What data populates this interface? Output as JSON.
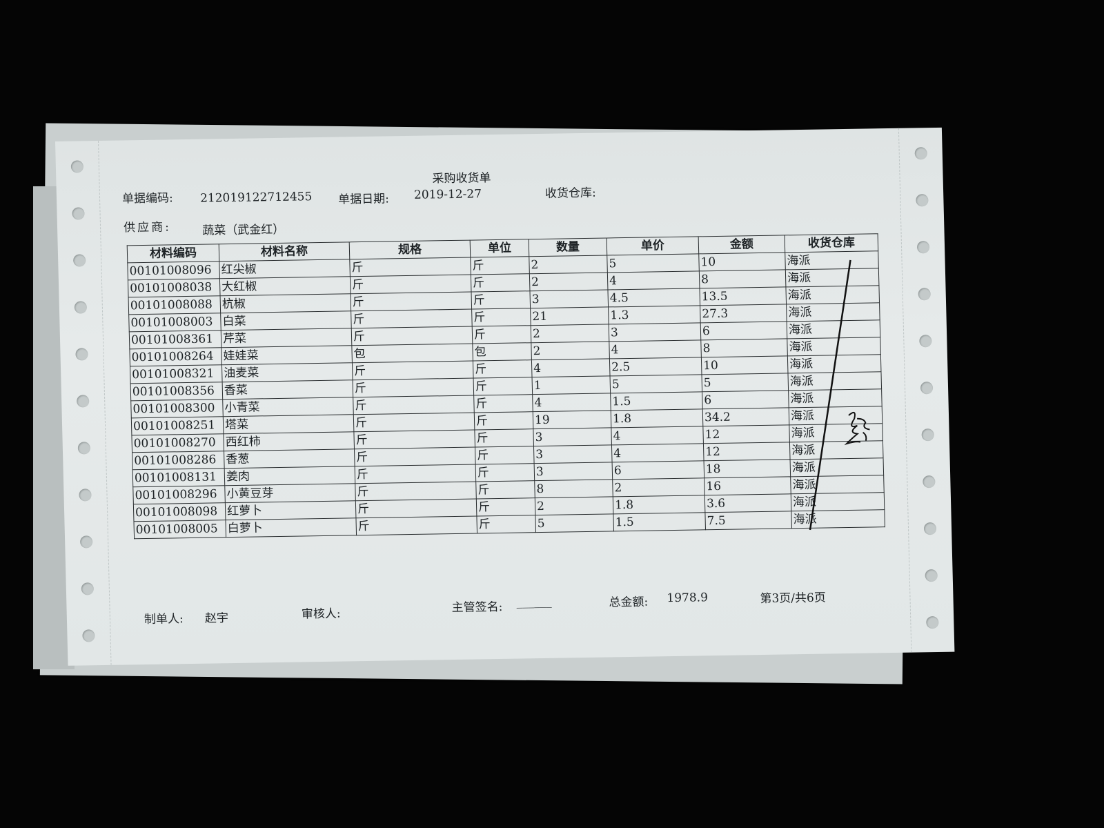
{
  "document": {
    "title": "采购收货单",
    "doc_no_label": "单据编码:",
    "doc_no": "212019122712455",
    "date_label": "单据日期:",
    "date": "2019-12-27",
    "warehouse_label": "收货仓库:",
    "supplier_label": "供应商:",
    "supplier": "蔬菜（武金红）"
  },
  "table": {
    "headers": [
      "材料编码",
      "材料名称",
      "规格",
      "单位",
      "数量",
      "单价",
      "金额",
      "收货仓库"
    ],
    "rows": [
      [
        "00101008096",
        "红尖椒",
        "斤",
        "斤",
        "2",
        "5",
        "10",
        "海派"
      ],
      [
        "00101008038",
        "大红椒",
        "斤",
        "斤",
        "2",
        "4",
        "8",
        "海派"
      ],
      [
        "00101008088",
        "杭椒",
        "斤",
        "斤",
        "3",
        "4.5",
        "13.5",
        "海派"
      ],
      [
        "00101008003",
        "白菜",
        "斤",
        "斤",
        "21",
        "1.3",
        "27.3",
        "海派"
      ],
      [
        "00101008361",
        "芹菜",
        "斤",
        "斤",
        "2",
        "3",
        "6",
        "海派"
      ],
      [
        "00101008264",
        "娃娃菜",
        "包",
        "包",
        "2",
        "4",
        "8",
        "海派"
      ],
      [
        "00101008321",
        "油麦菜",
        "斤",
        "斤",
        "4",
        "2.5",
        "10",
        "海派"
      ],
      [
        "00101008356",
        "香菜",
        "斤",
        "斤",
        "1",
        "5",
        "5",
        "海派"
      ],
      [
        "00101008300",
        "小青菜",
        "斤",
        "斤",
        "4",
        "1.5",
        "6",
        "海派"
      ],
      [
        "00101008251",
        "塔菜",
        "斤",
        "斤",
        "19",
        "1.8",
        "34.2",
        "海派"
      ],
      [
        "00101008270",
        "西红柿",
        "斤",
        "斤",
        "3",
        "4",
        "12",
        "海派"
      ],
      [
        "00101008286",
        "香葱",
        "斤",
        "斤",
        "3",
        "4",
        "12",
        "海派"
      ],
      [
        "00101008131",
        "姜肉",
        "斤",
        "斤",
        "3",
        "6",
        "18",
        "海派"
      ],
      [
        "00101008296",
        "小黄豆芽",
        "斤",
        "斤",
        "8",
        "2",
        "16",
        "海派"
      ],
      [
        "00101008098",
        "红萝卜",
        "斤",
        "斤",
        "2",
        "1.8",
        "3.6",
        "海派"
      ],
      [
        "00101008005",
        "白萝卜",
        "斤",
        "斤",
        "5",
        "1.5",
        "7.5",
        "海派"
      ]
    ]
  },
  "footer": {
    "maker_label": "制单人:",
    "maker": "赵宇",
    "reviewer_label": "审核人:",
    "supervisor_label": "主管签名:",
    "supervisor_blank": "______",
    "total_label": "总金额:",
    "total": "1978.9",
    "page": "第3页/共6页"
  }
}
